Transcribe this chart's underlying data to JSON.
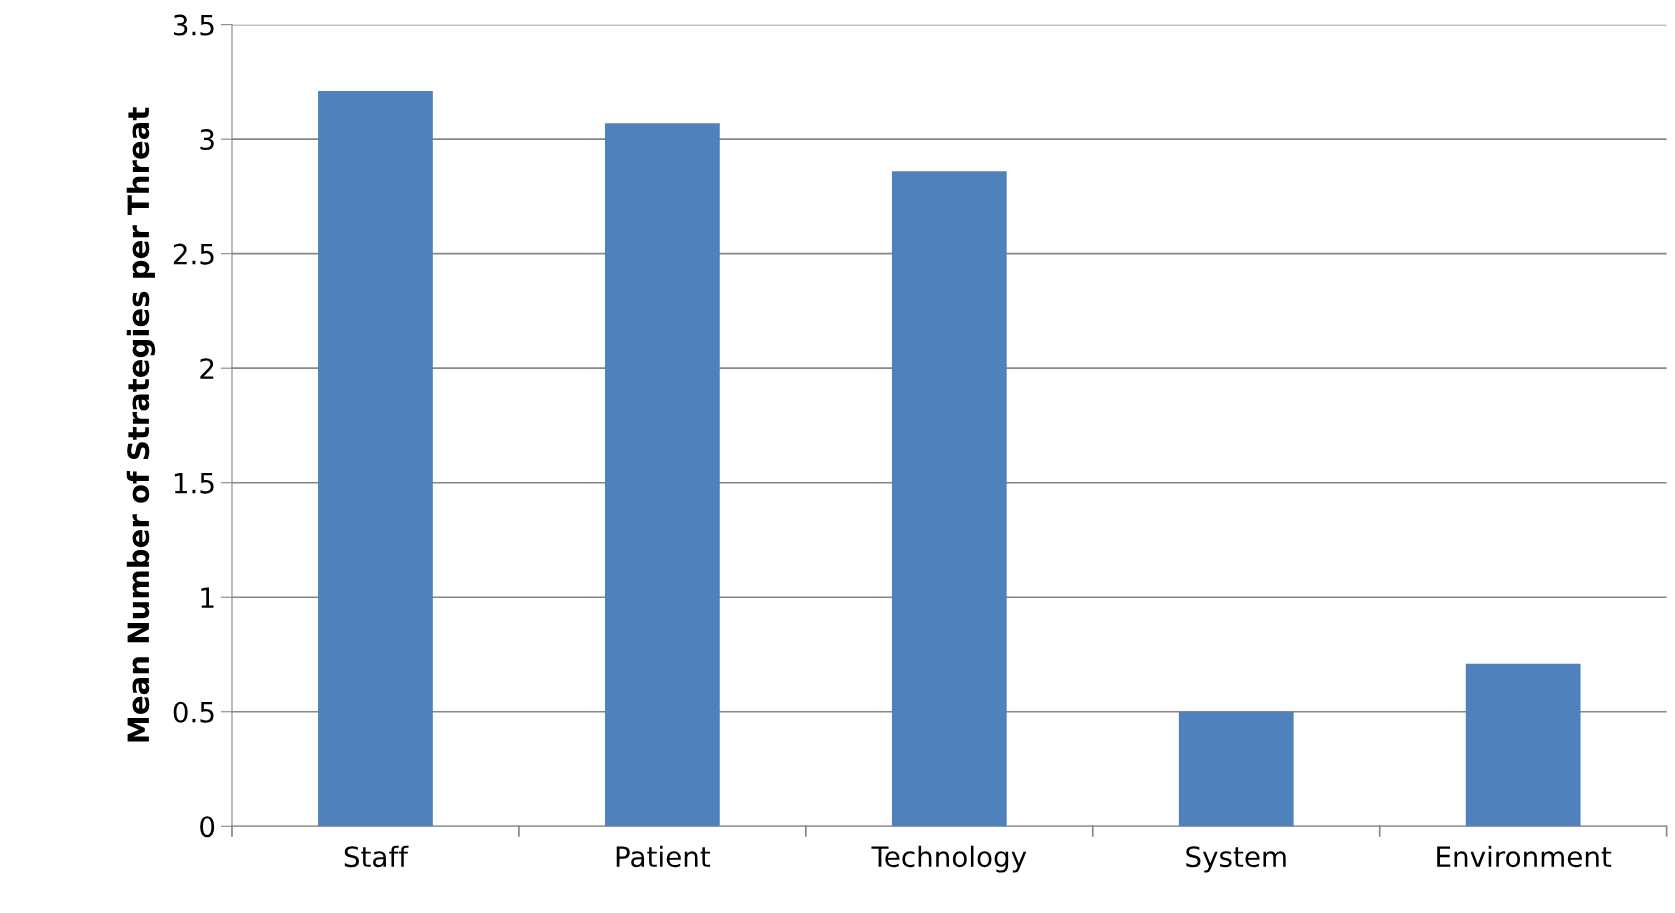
{
  "chart_data": {
    "type": "bar",
    "ylabel": "Mean Number of Strategies per Threat",
    "categories": [
      "Staff",
      "Patient",
      "Technology",
      "System",
      "Environment"
    ],
    "values": [
      3.21,
      3.07,
      2.86,
      0.5,
      0.71
    ],
    "color": "#4f81bd",
    "ylim": [
      0,
      3.5
    ],
    "yticks": [
      0,
      0.5,
      1,
      1.5,
      2,
      2.5,
      3,
      3.5
    ],
    "grid": "y",
    "legend": false
  }
}
